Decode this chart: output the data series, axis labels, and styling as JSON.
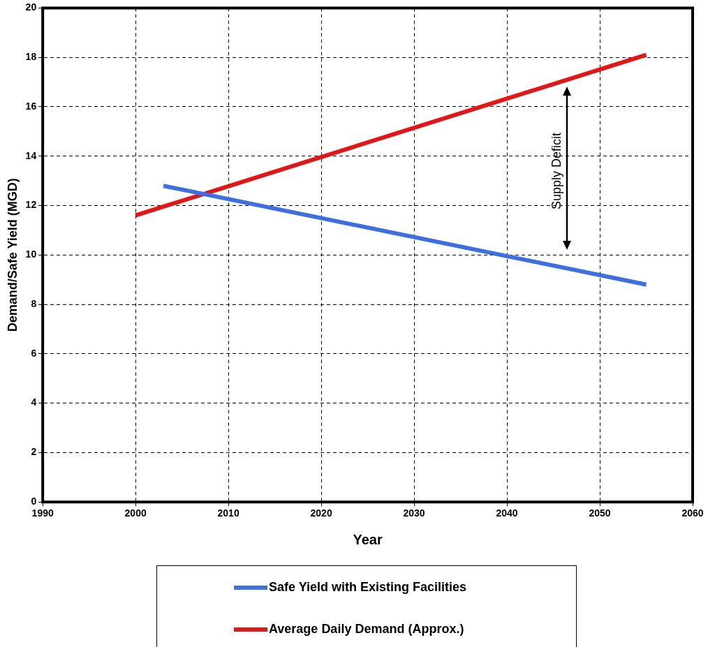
{
  "chart_data": {
    "type": "line",
    "xlabel": "Year",
    "ylabel": "Demand/Safe Yield (MGD)",
    "xlim": [
      1990,
      2060
    ],
    "xticks": [
      1990,
      2000,
      2010,
      2020,
      2030,
      2040,
      2050,
      2060
    ],
    "ylim": [
      0,
      20
    ],
    "yticks": [
      0,
      2,
      4,
      6,
      8,
      10,
      12,
      14,
      16,
      18,
      20
    ],
    "grid": true,
    "legend": "bottom",
    "marker": "none",
    "line_style": "solid",
    "series": [
      {
        "name": "Safe Yield with Existing Facilities",
        "color": "#3c6ee6",
        "x": [
          2003,
          2055
        ],
        "values": [
          12.8,
          8.8
        ]
      },
      {
        "name": "Average Daily Demand (Approx.)",
        "color": "#e61414",
        "x": [
          2000,
          2055
        ],
        "values": [
          11.6,
          18.1
        ]
      }
    ],
    "annotations": [
      "Supply Deficit"
    ]
  }
}
